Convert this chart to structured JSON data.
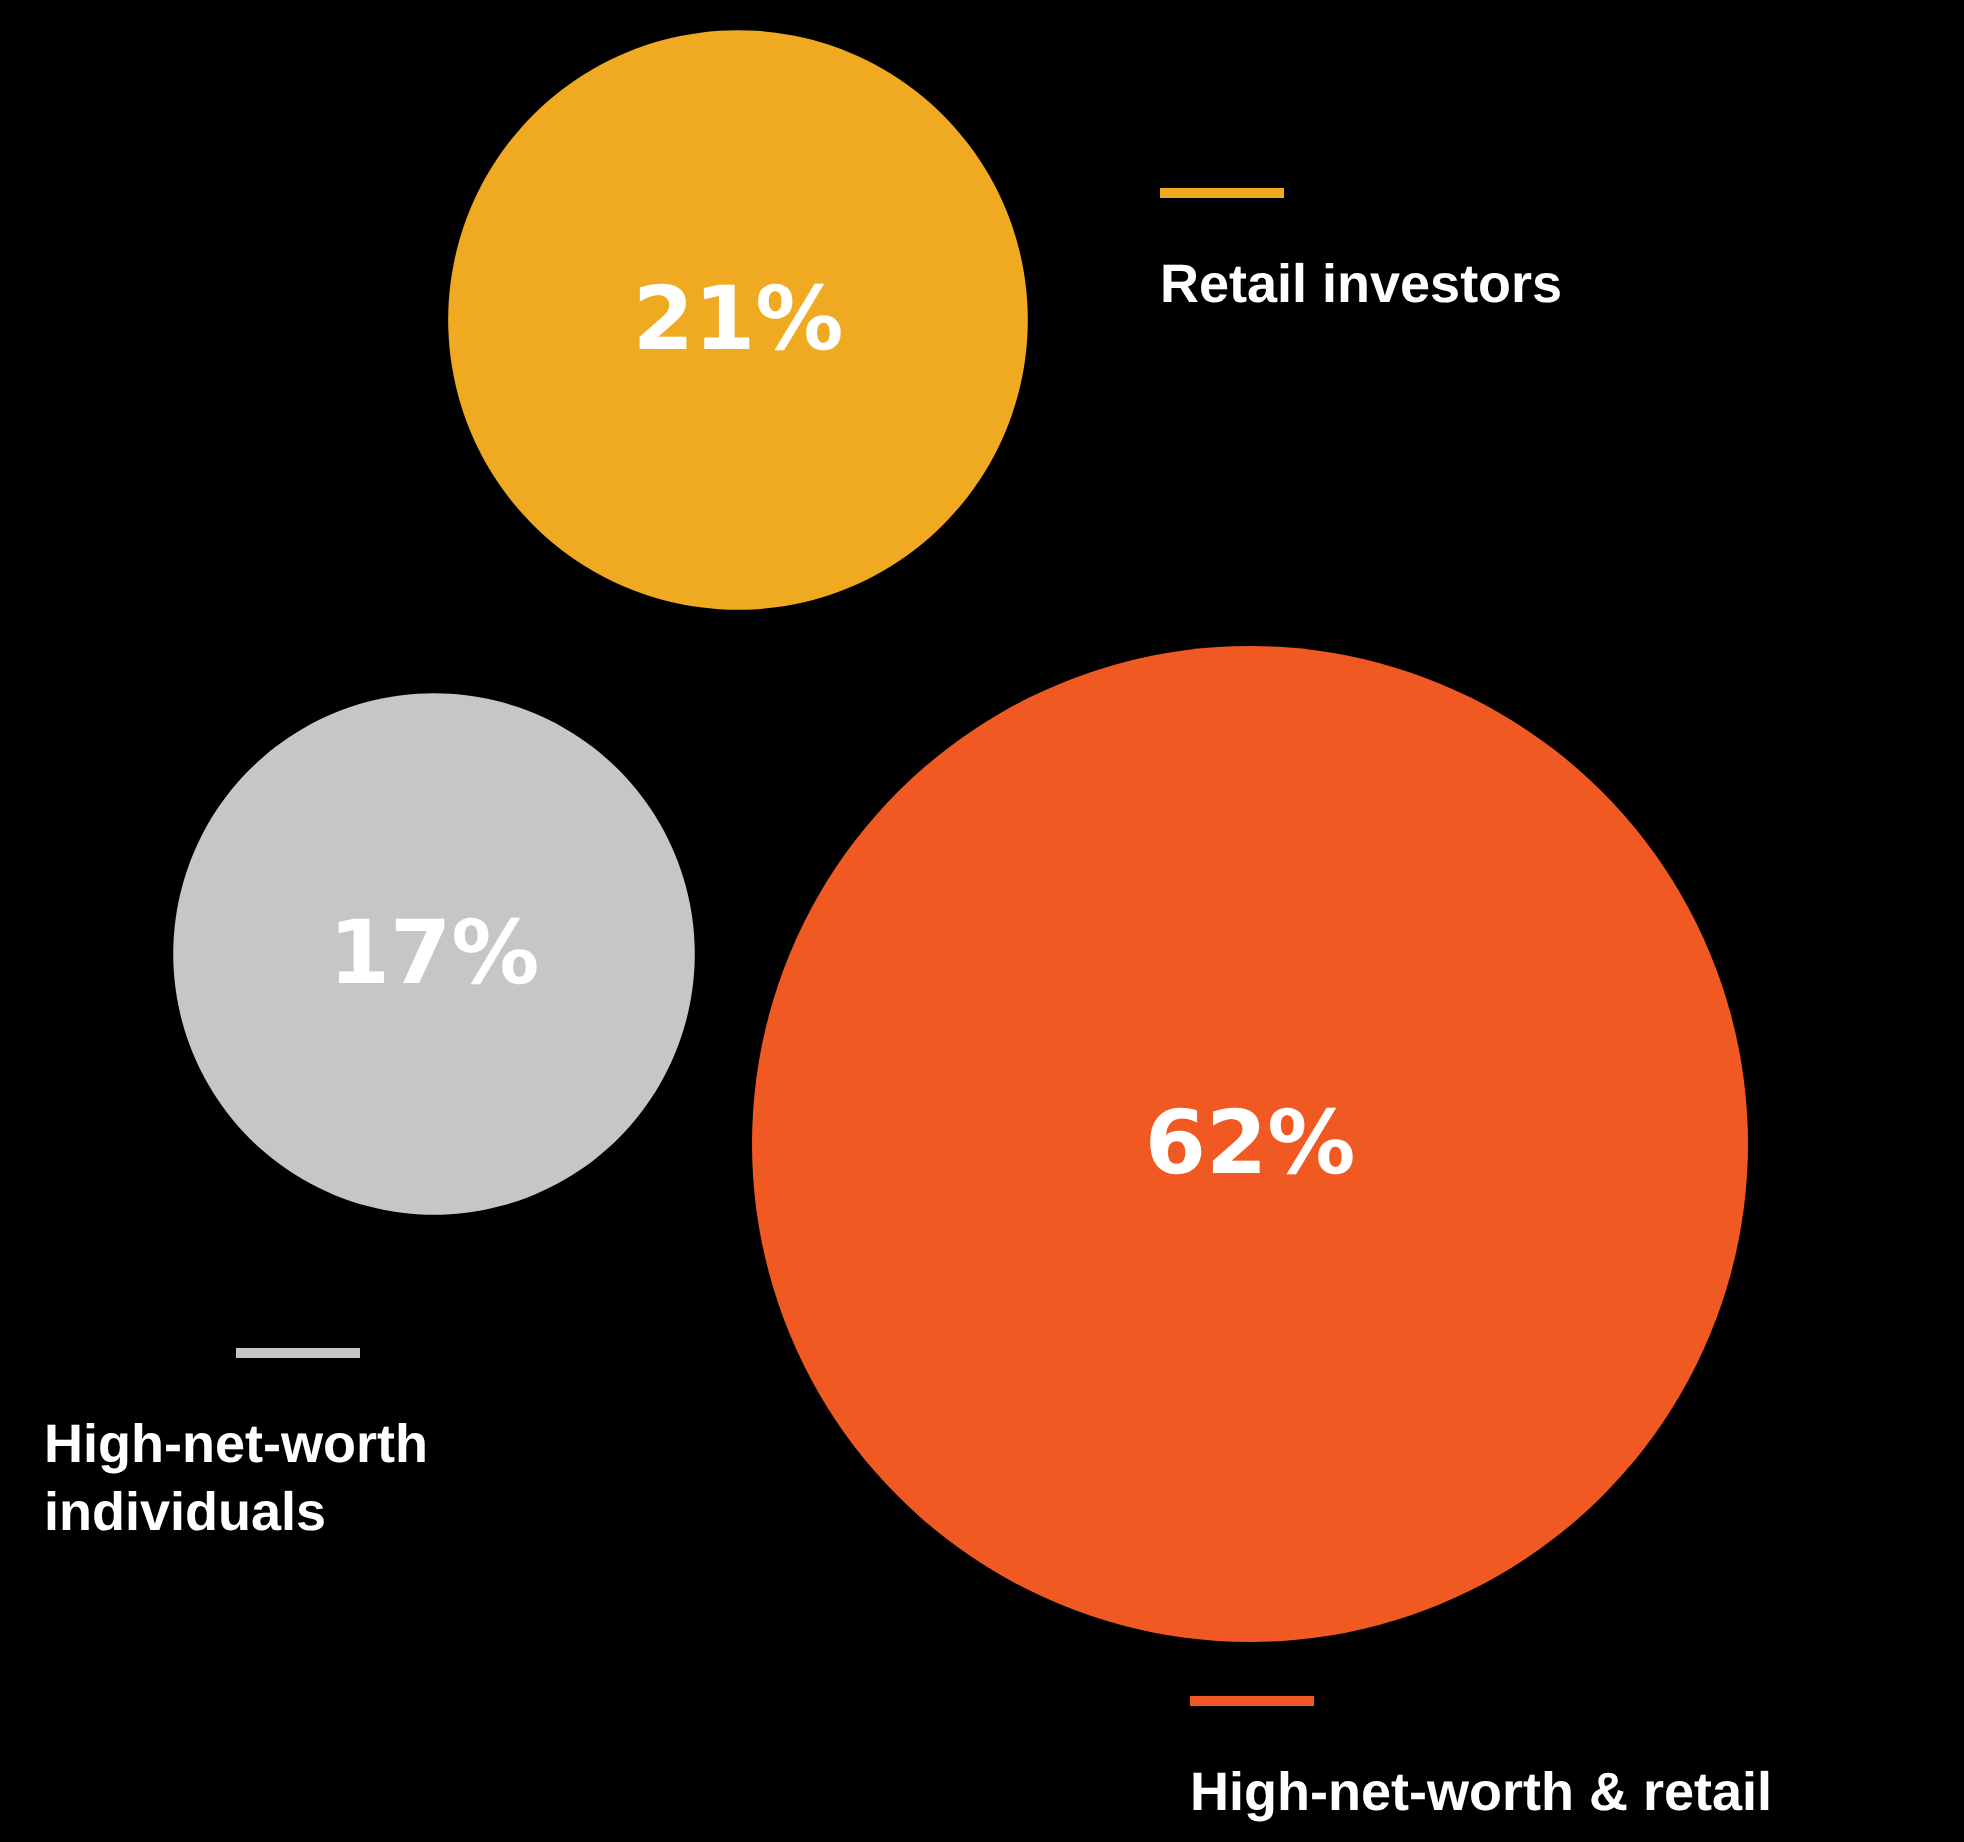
{
  "chart_data": {
    "type": "other",
    "categories": [
      "Retail investors",
      "High-net-worth individuals",
      "High-net-worth & retail"
    ],
    "values": [
      21,
      17,
      62
    ],
    "colors": [
      "#efaa22",
      "#c6c6c6",
      "#f05a22"
    ],
    "value_labels": [
      "21%",
      "17%",
      "62%"
    ]
  }
}
